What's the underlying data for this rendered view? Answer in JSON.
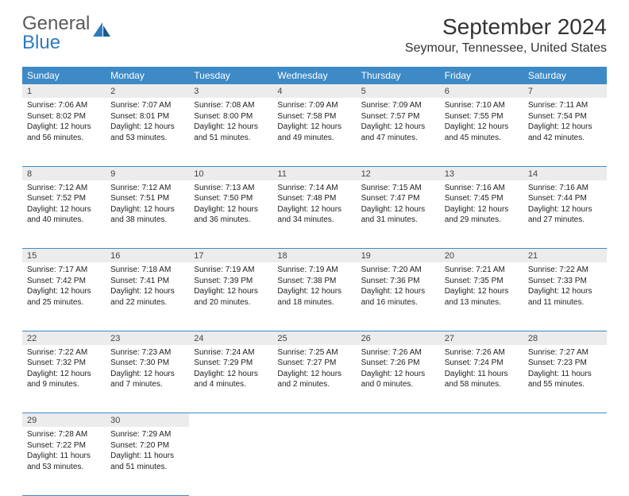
{
  "logo": {
    "part1": "General",
    "part2": "Blue"
  },
  "title": "September 2024",
  "location": "Seymour, Tennessee, United States",
  "colors": {
    "header_bg": "#3d8ac7",
    "header_text": "#ffffff",
    "daynum_bg": "#ececec",
    "border": "#3d8ac7",
    "logo_gray": "#5a5a5a",
    "logo_blue": "#2d7bbf"
  },
  "weekdays": [
    "Sunday",
    "Monday",
    "Tuesday",
    "Wednesday",
    "Thursday",
    "Friday",
    "Saturday"
  ],
  "weeks": [
    [
      {
        "n": "1",
        "sr": "Sunrise: 7:06 AM",
        "ss": "Sunset: 8:02 PM",
        "dl": "Daylight: 12 hours and 56 minutes."
      },
      {
        "n": "2",
        "sr": "Sunrise: 7:07 AM",
        "ss": "Sunset: 8:01 PM",
        "dl": "Daylight: 12 hours and 53 minutes."
      },
      {
        "n": "3",
        "sr": "Sunrise: 7:08 AM",
        "ss": "Sunset: 8:00 PM",
        "dl": "Daylight: 12 hours and 51 minutes."
      },
      {
        "n": "4",
        "sr": "Sunrise: 7:09 AM",
        "ss": "Sunset: 7:58 PM",
        "dl": "Daylight: 12 hours and 49 minutes."
      },
      {
        "n": "5",
        "sr": "Sunrise: 7:09 AM",
        "ss": "Sunset: 7:57 PM",
        "dl": "Daylight: 12 hours and 47 minutes."
      },
      {
        "n": "6",
        "sr": "Sunrise: 7:10 AM",
        "ss": "Sunset: 7:55 PM",
        "dl": "Daylight: 12 hours and 45 minutes."
      },
      {
        "n": "7",
        "sr": "Sunrise: 7:11 AM",
        "ss": "Sunset: 7:54 PM",
        "dl": "Daylight: 12 hours and 42 minutes."
      }
    ],
    [
      {
        "n": "8",
        "sr": "Sunrise: 7:12 AM",
        "ss": "Sunset: 7:52 PM",
        "dl": "Daylight: 12 hours and 40 minutes."
      },
      {
        "n": "9",
        "sr": "Sunrise: 7:12 AM",
        "ss": "Sunset: 7:51 PM",
        "dl": "Daylight: 12 hours and 38 minutes."
      },
      {
        "n": "10",
        "sr": "Sunrise: 7:13 AM",
        "ss": "Sunset: 7:50 PM",
        "dl": "Daylight: 12 hours and 36 minutes."
      },
      {
        "n": "11",
        "sr": "Sunrise: 7:14 AM",
        "ss": "Sunset: 7:48 PM",
        "dl": "Daylight: 12 hours and 34 minutes."
      },
      {
        "n": "12",
        "sr": "Sunrise: 7:15 AM",
        "ss": "Sunset: 7:47 PM",
        "dl": "Daylight: 12 hours and 31 minutes."
      },
      {
        "n": "13",
        "sr": "Sunrise: 7:16 AM",
        "ss": "Sunset: 7:45 PM",
        "dl": "Daylight: 12 hours and 29 minutes."
      },
      {
        "n": "14",
        "sr": "Sunrise: 7:16 AM",
        "ss": "Sunset: 7:44 PM",
        "dl": "Daylight: 12 hours and 27 minutes."
      }
    ],
    [
      {
        "n": "15",
        "sr": "Sunrise: 7:17 AM",
        "ss": "Sunset: 7:42 PM",
        "dl": "Daylight: 12 hours and 25 minutes."
      },
      {
        "n": "16",
        "sr": "Sunrise: 7:18 AM",
        "ss": "Sunset: 7:41 PM",
        "dl": "Daylight: 12 hours and 22 minutes."
      },
      {
        "n": "17",
        "sr": "Sunrise: 7:19 AM",
        "ss": "Sunset: 7:39 PM",
        "dl": "Daylight: 12 hours and 20 minutes."
      },
      {
        "n": "18",
        "sr": "Sunrise: 7:19 AM",
        "ss": "Sunset: 7:38 PM",
        "dl": "Daylight: 12 hours and 18 minutes."
      },
      {
        "n": "19",
        "sr": "Sunrise: 7:20 AM",
        "ss": "Sunset: 7:36 PM",
        "dl": "Daylight: 12 hours and 16 minutes."
      },
      {
        "n": "20",
        "sr": "Sunrise: 7:21 AM",
        "ss": "Sunset: 7:35 PM",
        "dl": "Daylight: 12 hours and 13 minutes."
      },
      {
        "n": "21",
        "sr": "Sunrise: 7:22 AM",
        "ss": "Sunset: 7:33 PM",
        "dl": "Daylight: 12 hours and 11 minutes."
      }
    ],
    [
      {
        "n": "22",
        "sr": "Sunrise: 7:22 AM",
        "ss": "Sunset: 7:32 PM",
        "dl": "Daylight: 12 hours and 9 minutes."
      },
      {
        "n": "23",
        "sr": "Sunrise: 7:23 AM",
        "ss": "Sunset: 7:30 PM",
        "dl": "Daylight: 12 hours and 7 minutes."
      },
      {
        "n": "24",
        "sr": "Sunrise: 7:24 AM",
        "ss": "Sunset: 7:29 PM",
        "dl": "Daylight: 12 hours and 4 minutes."
      },
      {
        "n": "25",
        "sr": "Sunrise: 7:25 AM",
        "ss": "Sunset: 7:27 PM",
        "dl": "Daylight: 12 hours and 2 minutes."
      },
      {
        "n": "26",
        "sr": "Sunrise: 7:26 AM",
        "ss": "Sunset: 7:26 PM",
        "dl": "Daylight: 12 hours and 0 minutes."
      },
      {
        "n": "27",
        "sr": "Sunrise: 7:26 AM",
        "ss": "Sunset: 7:24 PM",
        "dl": "Daylight: 11 hours and 58 minutes."
      },
      {
        "n": "28",
        "sr": "Sunrise: 7:27 AM",
        "ss": "Sunset: 7:23 PM",
        "dl": "Daylight: 11 hours and 55 minutes."
      }
    ],
    [
      {
        "n": "29",
        "sr": "Sunrise: 7:28 AM",
        "ss": "Sunset: 7:22 PM",
        "dl": "Daylight: 11 hours and 53 minutes."
      },
      {
        "n": "30",
        "sr": "Sunrise: 7:29 AM",
        "ss": "Sunset: 7:20 PM",
        "dl": "Daylight: 11 hours and 51 minutes."
      },
      null,
      null,
      null,
      null,
      null
    ]
  ]
}
